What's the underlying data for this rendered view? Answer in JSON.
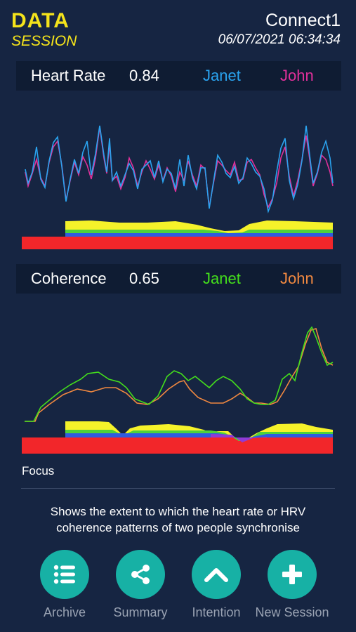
{
  "header": {
    "brand_title": "DATA",
    "brand_sub": "SESSION",
    "session_name": "Connect1",
    "session_time": "06/07/2021 06:34:34"
  },
  "heart_rate": {
    "label": "Heart Rate",
    "value": "0.84",
    "person1": "Janet",
    "person2": "John",
    "person1_color": "#2aa3ef",
    "person2_color": "#e0309a"
  },
  "coherence": {
    "label": "Coherence",
    "value": "0.65",
    "person1": "Janet",
    "person2": "John",
    "person1_color": "#44df1c",
    "person2_color": "#f08840"
  },
  "focus_label": "Focus",
  "description": "Shows the extent to which the heart rate or HRV coherence patterns of two people synchronise",
  "nav": [
    {
      "label": "Archive",
      "icon": "list-icon"
    },
    {
      "label": "Summary",
      "icon": "share-icon"
    },
    {
      "label": "Intention",
      "icon": "chevron-up-icon"
    },
    {
      "label": "New Session",
      "icon": "plus-icon"
    }
  ],
  "colors": {
    "background": "#162542",
    "accent": "#f4e31b",
    "button": "#17b1a5",
    "sync_red": "#f2262a",
    "sync_yellow": "#f5f22a",
    "sync_green": "#4ed13a",
    "sync_blue": "#2f5be0",
    "sync_purple": "#8f3bd6"
  }
}
